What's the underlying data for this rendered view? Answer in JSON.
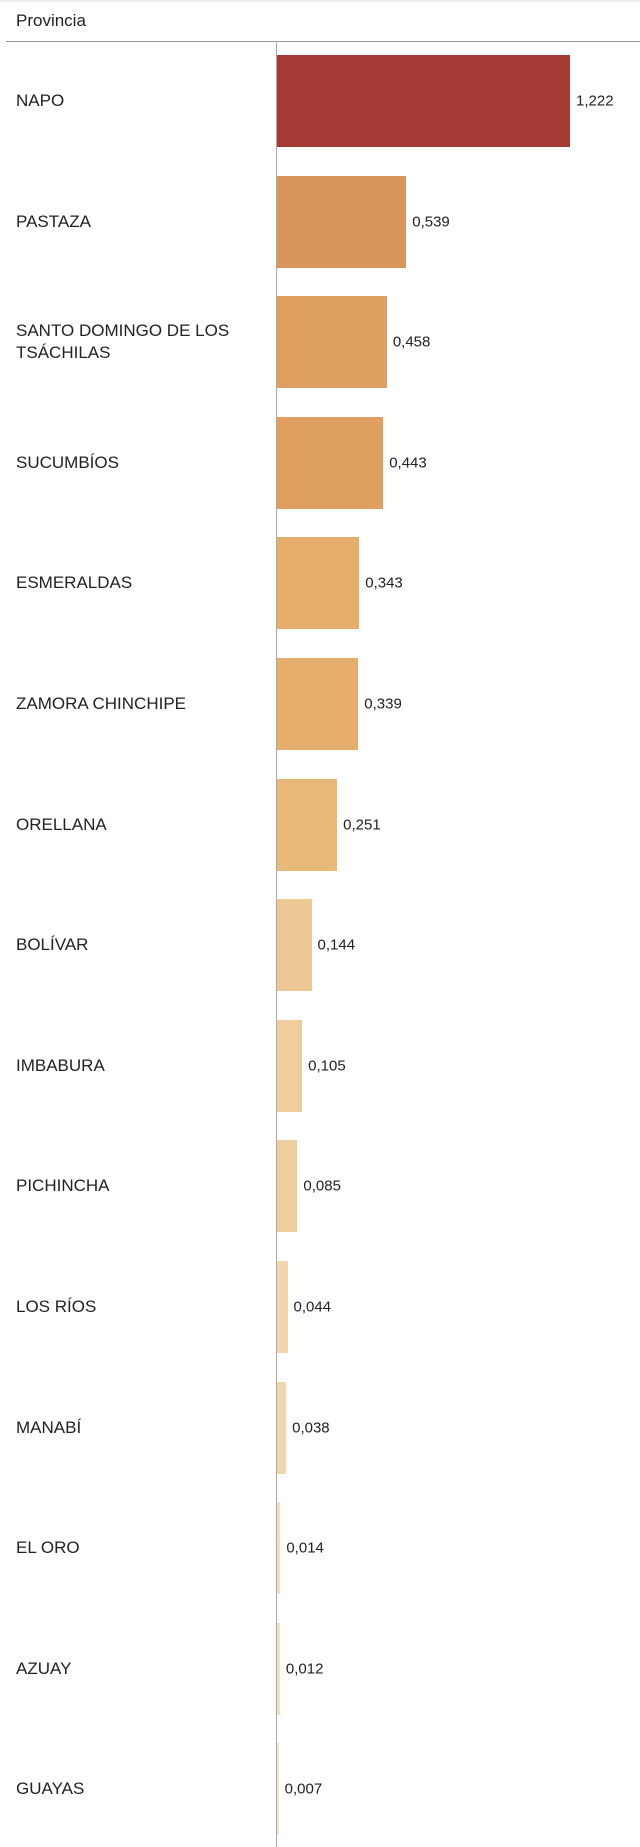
{
  "chart_data": {
    "type": "bar",
    "orientation": "horizontal",
    "header": "Provincia",
    "categories": [
      "NAPO",
      "PASTAZA",
      "SANTO DOMINGO DE LOS TSÁCHILAS",
      "SUCUMBÍOS",
      "ESMERALDAS",
      "ZAMORA CHINCHIPE",
      "ORELLANA",
      "BOLÍVAR",
      "IMBABURA",
      "PICHINCHA",
      "LOS RÍOS",
      "MANABÍ",
      "EL ORO",
      "AZUAY",
      "GUAYAS"
    ],
    "values": [
      1.222,
      0.539,
      0.458,
      0.443,
      0.343,
      0.339,
      0.251,
      0.144,
      0.105,
      0.085,
      0.044,
      0.038,
      0.014,
      0.012,
      0.007
    ],
    "value_labels": [
      "1,222",
      "0,539",
      "0,458",
      "0,443",
      "0,343",
      "0,339",
      "0,251",
      "0,144",
      "0,105",
      "0,085",
      "0,044",
      "0,038",
      "0,014",
      "0,012",
      "0,007"
    ],
    "colors": [
      "#a33a35",
      "#d9955a",
      "#dd9e5f",
      "#de9f60",
      "#e6ae6c",
      "#e6ae6c",
      "#e8b878",
      "#edc894",
      "#efcd9e",
      "#efcfa0",
      "#f1d6ae",
      "#f1d7b0",
      "#f3dfc0",
      "#f3e0c2",
      "#f5e6cc"
    ]
  }
}
